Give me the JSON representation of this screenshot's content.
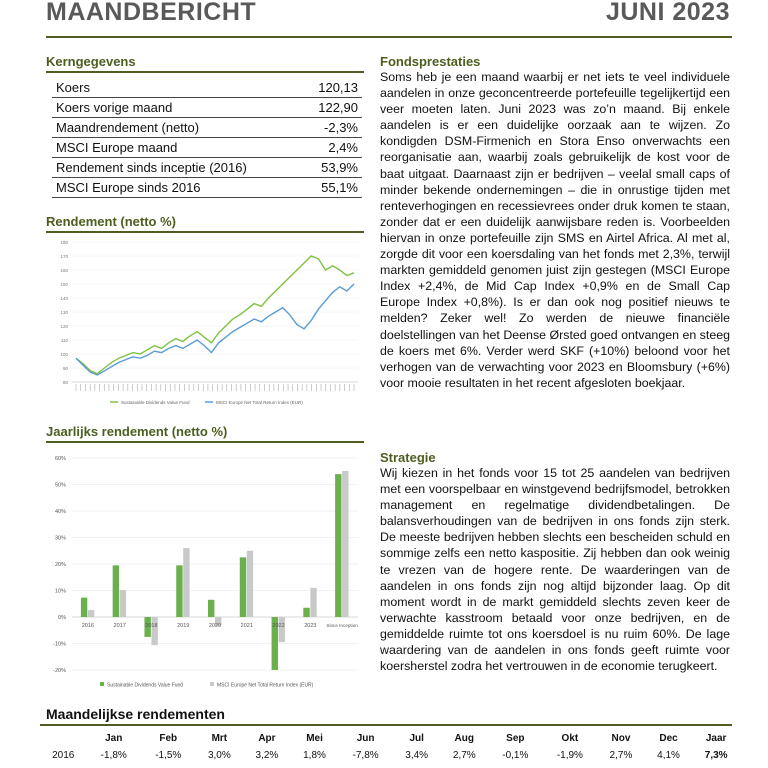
{
  "header": {
    "title": "MAANDBERICHT",
    "period": "JUNI 2023"
  },
  "kerngegevens": {
    "title": "Kerngegevens",
    "rows": [
      [
        "Koers",
        "120,13"
      ],
      [
        "Koers vorige maand",
        "122,90"
      ],
      [
        "Maandrendement (netto)",
        "-2,3%"
      ],
      [
        "MSCI Europe maand",
        "2,4%"
      ],
      [
        "Rendement sinds inceptie (2016)",
        "53,9%"
      ],
      [
        "MSCI Europe sinds 2016",
        "55,1%"
      ]
    ]
  },
  "line_chart": {
    "type": "line",
    "title": "Rendement (netto %)",
    "ylim": [
      80,
      180
    ],
    "yticks": [
      80,
      90,
      100,
      110,
      120,
      130,
      140,
      150,
      160,
      170,
      180
    ],
    "series": [
      {
        "name": "Sustainable Dividends Value Fund",
        "color": "#7fc241",
        "values": [
          97,
          93,
          88,
          86,
          90,
          94,
          97,
          99,
          101,
          100,
          103,
          106,
          104,
          108,
          111,
          109,
          113,
          116,
          112,
          108,
          115,
          120,
          125,
          128,
          132,
          136,
          134,
          140,
          145,
          150,
          155,
          160,
          165,
          170,
          168,
          160,
          163,
          160,
          156,
          158
        ]
      },
      {
        "name": "MSCI Europe Net Total Return Index (EUR)",
        "color": "#5b9bd5",
        "values": [
          97,
          92,
          87,
          85,
          88,
          91,
          94,
          96,
          98,
          97,
          99,
          102,
          101,
          104,
          106,
          104,
          107,
          110,
          106,
          101,
          108,
          112,
          116,
          119,
          122,
          125,
          123,
          127,
          130,
          133,
          128,
          121,
          118,
          124,
          132,
          138,
          144,
          148,
          145,
          150
        ]
      }
    ]
  },
  "bar_chart": {
    "type": "bar",
    "title": "Jaarlijks rendement (netto %)",
    "categories": [
      "2016",
      "2017",
      "2018",
      "2019",
      "2020",
      "2021",
      "2022",
      "2023",
      "Since Inception"
    ],
    "ylim": [
      -20,
      60
    ],
    "yticks": [
      {
        "value": -20,
        "label": "-20%"
      },
      {
        "value": -10,
        "label": "-10%"
      },
      {
        "value": 0,
        "label": "0%"
      },
      {
        "value": 10,
        "label": "10%"
      },
      {
        "value": 20,
        "label": "20%"
      },
      {
        "value": 30,
        "label": "30%"
      },
      {
        "value": 40,
        "label": "40%"
      },
      {
        "value": 50,
        "label": "50%"
      },
      {
        "value": 60,
        "label": "60%"
      }
    ],
    "grid": true,
    "series": [
      {
        "name": "Sustainable Dividends Value Fund",
        "color": "#6ab04c",
        "values": [
          7.3,
          19.5,
          -7.5,
          19.5,
          6.5,
          22.5,
          -20,
          3.5,
          53.9
        ]
      },
      {
        "name": "MSCI Europe Net Total Return Index (EUR)",
        "color": "#c9c9c9",
        "values": [
          2.6,
          10.2,
          -10.6,
          26.0,
          -3.3,
          25.0,
          -9.5,
          11.0,
          55.1
        ]
      }
    ]
  },
  "fondsprestaties": {
    "title": "Fondsprestaties",
    "text": "Soms heb je een maand waarbij er net iets te veel individuele aandelen in onze geconcentreerde portefeuille tegelijkertijd een veer moeten laten. Juni 2023 was zo’n maand. Bij enkele aandelen is er een duidelijke oorzaak aan te wijzen. Zo kondigden DSM-Firmenich en Stora Enso onverwachts een reorganisatie aan, waarbij zoals gebruikelijk de kost voor de baat uitgaat. Daarnaast zijn er bedrijven – veelal small caps of minder bekende ondernemingen – die in onrustige tijden met renteverhogingen en recessievrees onder druk komen te staan, zonder dat er een duidelijk aanwijsbare reden is. Voorbeelden hiervan in onze portefeuille zijn SMS en Airtel Africa. Al met al, zorgde dit voor een koersdaling van het fonds met 2,3%, terwijl markten gemiddeld genomen juist zijn gestegen (MSCI Europe Index +2,4%, de Mid Cap Index +0,9% en de Small Cap Europe Index +0,8%). Is er dan ook nog positief nieuws te melden? Zeker wel! Zo werden de nieuwe financiële doelstellingen van het Deense Ørsted goed ontvangen en steeg de koers met 6%. Verder werd SKF (+10%) beloond voor het verhogen van de verwachting voor 2023 en Bloomsbury (+6%) voor mooie resultaten in het recent afgesloten boekjaar."
  },
  "strategie": {
    "title": "Strategie",
    "text": "Wij kiezen in het fonds voor 15 tot 25 aandelen van bedrijven met een voorspelbaar en winstgevend bedrijfsmodel, betrokken management en regelmatige dividendbetalingen. De balansverhoudingen van de bedrijven in ons fonds zijn sterk. De meeste bedrijven hebben slechts een bescheiden schuld en sommige zelfs een netto kaspositie. Zij hebben dan ook weinig te vrezen van de hogere rente. De waarderingen van de aandelen in ons fonds zijn nog altijd bijzonder laag. Op dit moment wordt in de markt gemiddeld slechts zeven keer de verwachte kasstroom betaald voor onze bedrijven, en de gemiddelde ruimte tot ons koersdoel is nu ruim 60%. De lage waardering van de aandelen in ons fonds geeft ruimte voor koersherstel zodra het vertrouwen in de economie terugkeert."
  },
  "maandelijks": {
    "title": "Maandelijkse rendementen",
    "columns": [
      "Jan",
      "Feb",
      "Mrt",
      "Apr",
      "Mei",
      "Jun",
      "Jul",
      "Aug",
      "Sep",
      "Okt",
      "Nov",
      "Dec",
      "Jaar"
    ],
    "rows": [
      {
        "year": "2016",
        "values": [
          "-1,8%",
          "-1,5%",
          "3,0%",
          "3,2%",
          "1,8%",
          "-7,8%",
          "3,4%",
          "2,7%",
          "-0,1%",
          "-1,9%",
          "2,7%",
          "4,1%",
          "7,3%"
        ]
      }
    ]
  }
}
